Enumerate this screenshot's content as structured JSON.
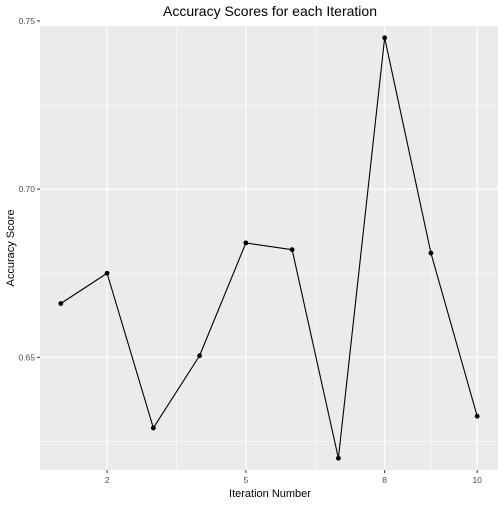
{
  "chart_data": {
    "type": "line",
    "title": "Accuracy Scores for each Iteration",
    "xlabel": "Iteration Number",
    "ylabel": "Accuracy Score",
    "x": [
      1,
      2,
      3,
      4,
      5,
      6,
      7,
      8,
      9,
      10
    ],
    "y": [
      0.666,
      0.675,
      0.629,
      0.6505,
      0.684,
      0.682,
      0.62,
      0.745,
      0.681,
      0.6325
    ],
    "xlim": [
      0.55,
      10.45
    ],
    "ylim": [
      0.6165,
      0.7485
    ],
    "x_ticks": [
      2,
      5,
      8,
      10
    ],
    "x_tick_labels": [
      "2",
      "5",
      "8",
      "10"
    ],
    "y_ticks": [
      0.65,
      0.7,
      0.75
    ],
    "y_tick_labels": [
      "0.65",
      "0.70",
      "0.75"
    ],
    "grid": true,
    "panel_background": "#EBEBEB",
    "grid_color": "#FFFFFF",
    "line_color": "#000000",
    "point_color": "#000000"
  }
}
